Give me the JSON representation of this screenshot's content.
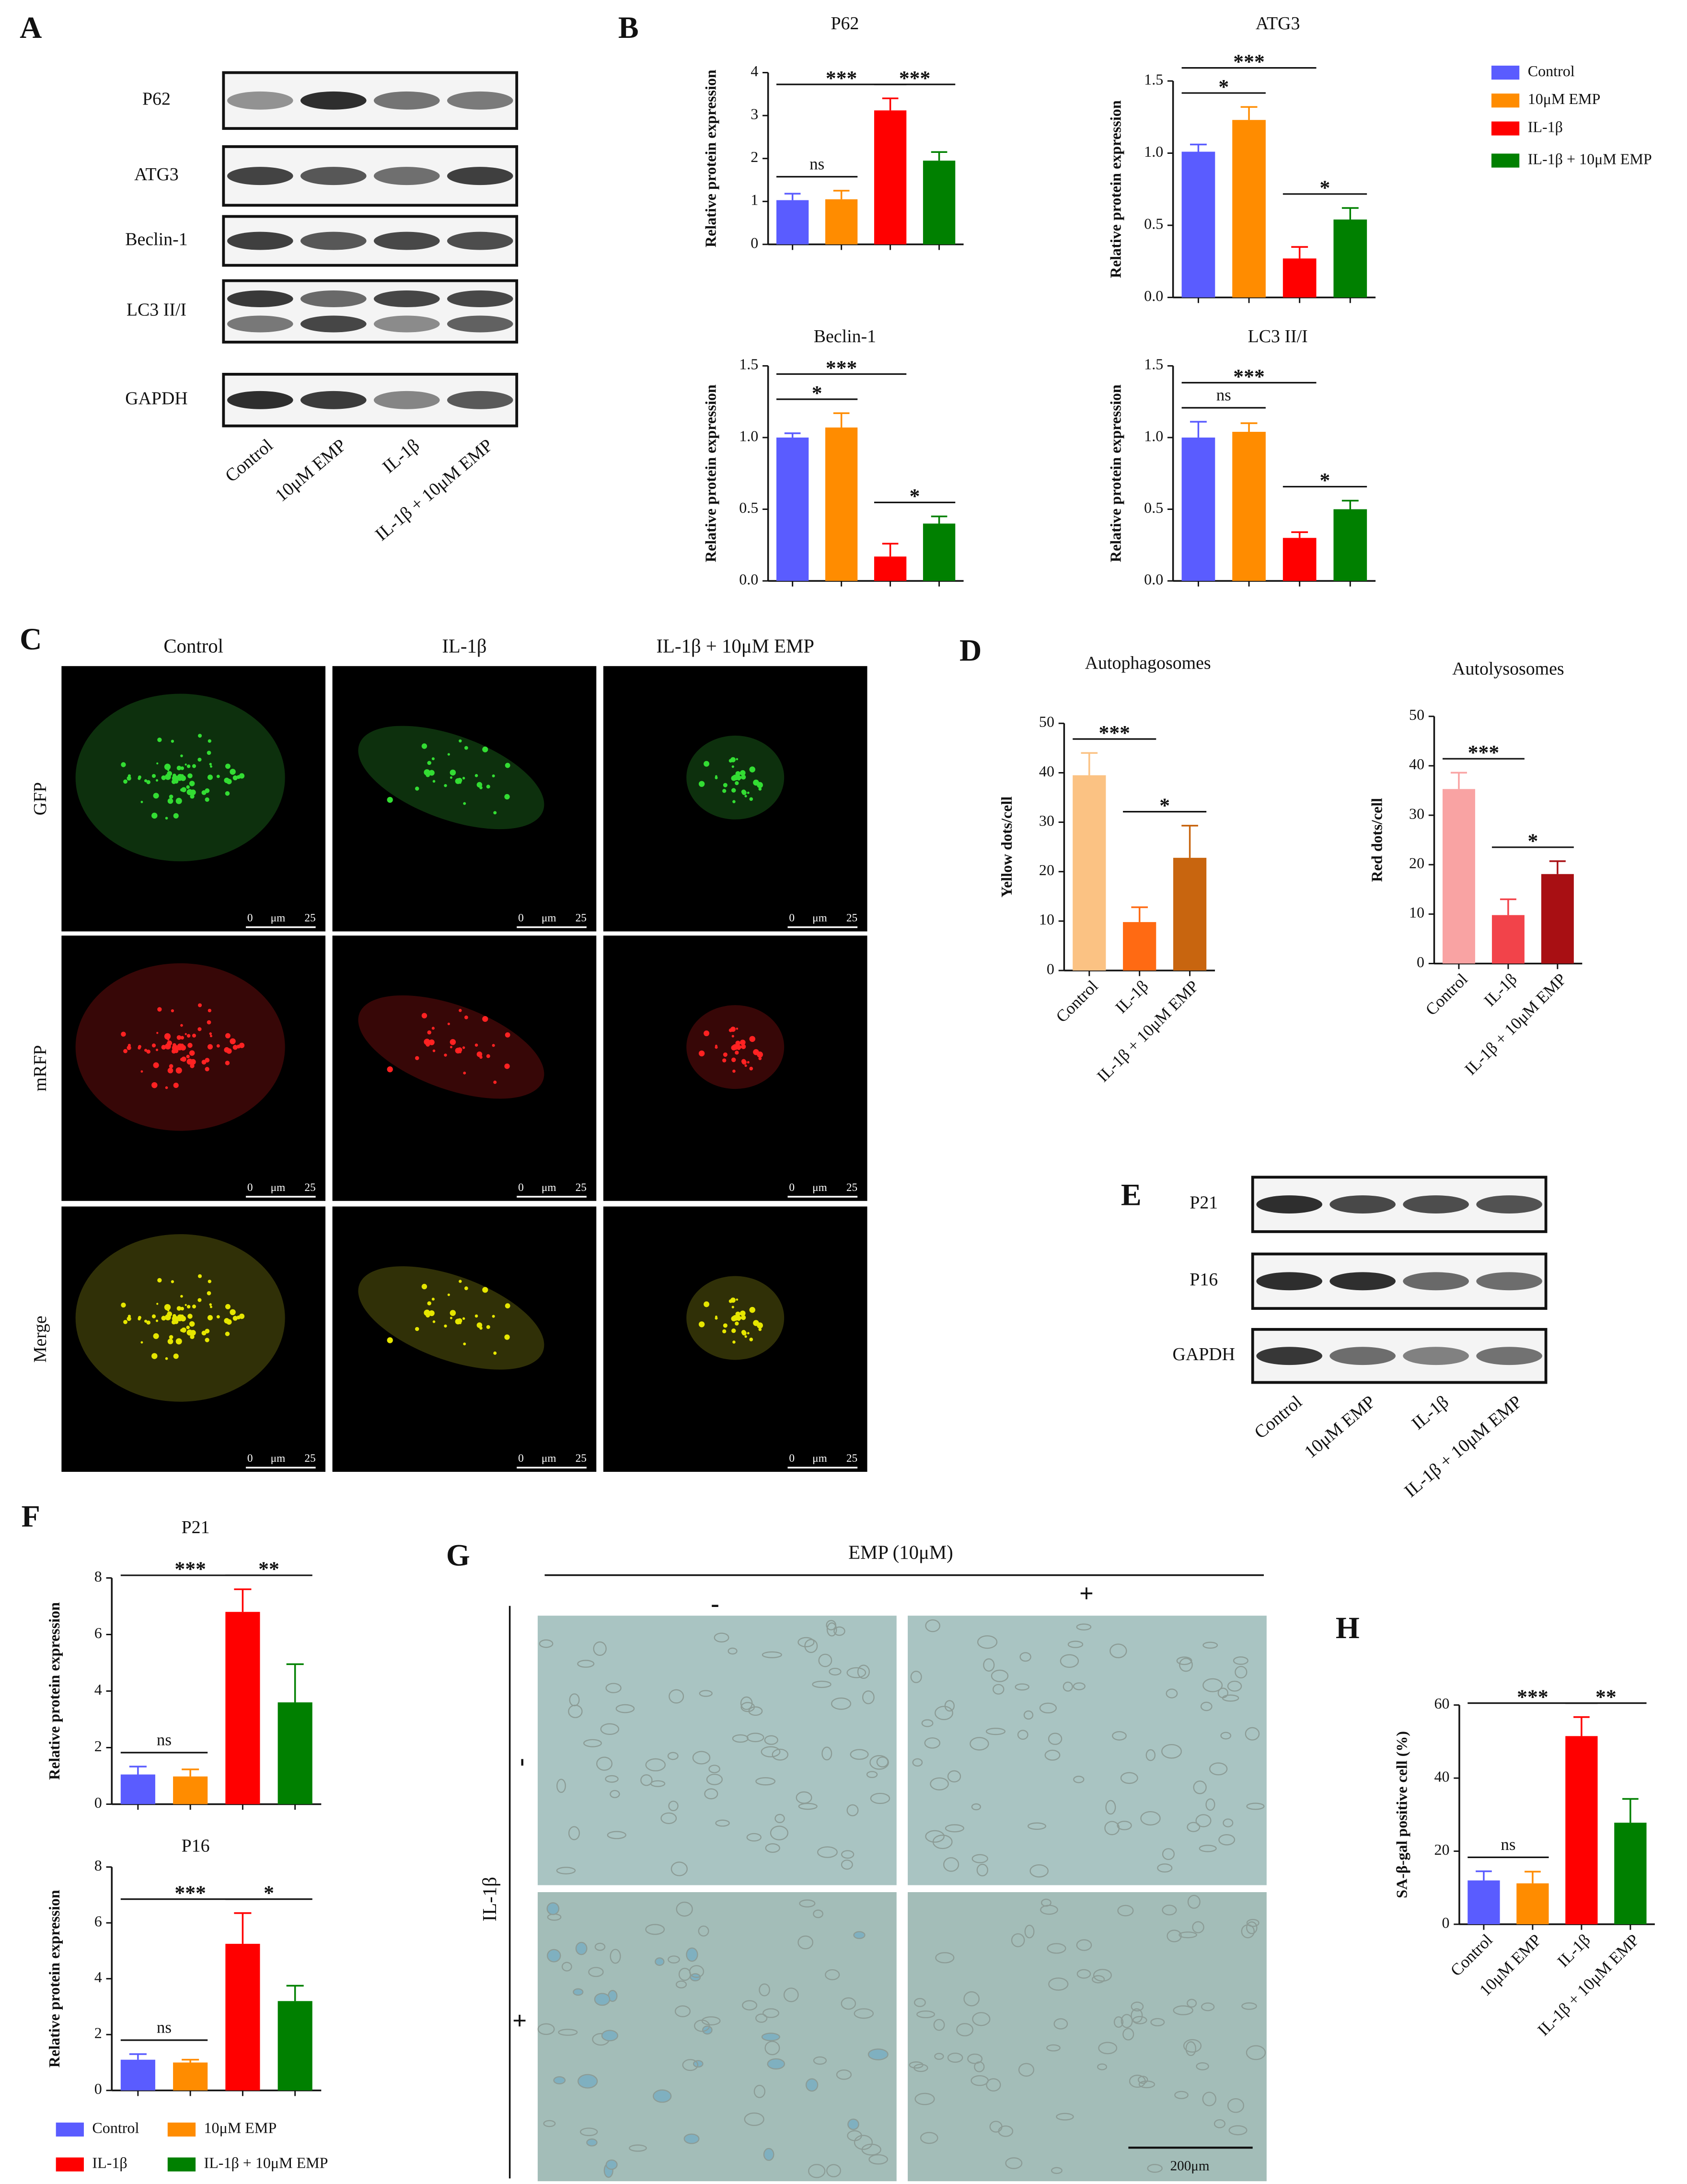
{
  "panel_labels": [
    "A",
    "B",
    "C",
    "D",
    "E",
    "F",
    "G",
    "H"
  ],
  "blots": [
    {
      "rows": [
        "P62",
        "ATG3",
        "Beclin-1",
        "LC3 II/I",
        "GAPDH"
      ],
      "lanes": [
        "Control",
        "10μM EMP",
        "IL-1β",
        "IL-1β + 10μM EMP"
      ]
    },
    {
      "rows": [
        "P21",
        "P16",
        "GAPDH"
      ],
      "lanes": [
        "Control",
        "10μM EMP",
        "IL-1β",
        "IL-1β + 10μM EMP"
      ]
    }
  ],
  "microscopy": {
    "columns": [
      "Control",
      "IL-1β",
      "IL-1β + 10μM EMP"
    ],
    "rows": [
      "GFP",
      "mRFP",
      "Merge"
    ],
    "scale": [
      "0",
      "μm",
      "25"
    ]
  },
  "staining": {
    "header": "EMP (10μM)",
    "columns": [
      "-",
      "+"
    ],
    "row_label": "IL-1β",
    "rows": [
      "-",
      "+"
    ],
    "scale": "200μm"
  },
  "legends": [
    [
      {
        "name": "Control",
        "color": "#5a5cff"
      },
      {
        "name": "10μM EMP",
        "color": "#ff8c00"
      },
      {
        "name": "IL-1β",
        "color": "#ff0000"
      },
      {
        "name": "IL-1β + 10μM EMP",
        "color": "#008000"
      }
    ],
    [
      {
        "name": "Control",
        "color": "#5a5cff"
      },
      {
        "name": "10μM EMP",
        "color": "#ff8c00"
      },
      {
        "name": "IL-1β",
        "color": "#ff0000"
      },
      {
        "name": "IL-1β + 10μM EMP",
        "color": "#008000"
      }
    ]
  ],
  "chart_data": [
    {
      "type": "bar",
      "title": "P62",
      "ylabel": "Relative protein expression",
      "values": [
        1.03,
        1.05,
        3.12,
        1.95
      ],
      "errors": [
        0.15,
        0.2,
        0.28,
        0.2
      ],
      "colors": [
        "#5a5cff",
        "#ff8c00",
        "#ff0000",
        "#008000"
      ],
      "ylim": [
        0,
        4
      ],
      "yticks": [
        0,
        1,
        2,
        3,
        4
      ],
      "annotations": [
        {
          "text": "ns",
          "from": 0,
          "to": 1
        },
        {
          "text": "***",
          "from": 0,
          "to": 2
        },
        {
          "text": "***",
          "from": 2,
          "to": 3
        }
      ]
    },
    {
      "type": "bar",
      "title": "ATG3",
      "ylabel": "Relative protein expression",
      "values": [
        1.01,
        1.23,
        0.27,
        0.54
      ],
      "errors": [
        0.05,
        0.09,
        0.08,
        0.08
      ],
      "colors": [
        "#5a5cff",
        "#ff8c00",
        "#ff0000",
        "#008000"
      ],
      "ylim": [
        0,
        1.5
      ],
      "yticks": [
        {
          "value": 0,
          "label": "0.0"
        },
        0.5,
        {
          "value": 1,
          "label": "1.0"
        },
        1.5
      ],
      "annotations": [
        {
          "text": "*",
          "from": 0,
          "to": 1
        },
        {
          "text": "***",
          "from": 0,
          "to": 2
        },
        {
          "text": "*",
          "from": 2,
          "to": 3
        }
      ]
    },
    {
      "type": "bar",
      "title": "Beclin-1",
      "ylabel": "Relative protein expression",
      "values": [
        1.0,
        1.07,
        0.17,
        0.4
      ],
      "errors": [
        0.03,
        0.1,
        0.09,
        0.05
      ],
      "colors": [
        "#5a5cff",
        "#ff8c00",
        "#ff0000",
        "#008000"
      ],
      "ylim": [
        0,
        1.5
      ],
      "yticks": [
        {
          "value": 0,
          "label": "0.0"
        },
        0.5,
        {
          "value": 1,
          "label": "1.0"
        },
        1.5
      ],
      "annotations": [
        {
          "text": "*",
          "from": 0,
          "to": 1
        },
        {
          "text": "***",
          "from": 0,
          "to": 2
        },
        {
          "text": "*",
          "from": 2,
          "to": 3
        }
      ]
    },
    {
      "type": "bar",
      "title": "LC3 II/I",
      "ylabel": "Relative protein expression",
      "values": [
        1.0,
        1.04,
        0.3,
        0.5
      ],
      "errors": [
        0.11,
        0.06,
        0.04,
        0.06
      ],
      "colors": [
        "#5a5cff",
        "#ff8c00",
        "#ff0000",
        "#008000"
      ],
      "ylim": [
        0,
        1.5
      ],
      "yticks": [
        {
          "value": 0,
          "label": "0.0"
        },
        0.5,
        {
          "value": 1,
          "label": "1.0"
        },
        1.5
      ],
      "annotations": [
        {
          "text": "ns",
          "from": 0,
          "to": 1
        },
        {
          "text": "***",
          "from": 0,
          "to": 2
        },
        {
          "text": "*",
          "from": 2,
          "to": 3
        }
      ]
    },
    {
      "type": "bar",
      "title": "Autophagosomes",
      "ylabel": "Yellow dots/cell",
      "categories": [
        "Control",
        "IL-1β",
        "IL-1β + 10μM EMP"
      ],
      "values": [
        39.5,
        9.8,
        22.8
      ],
      "errors": [
        4.5,
        3.0,
        6.5
      ],
      "colors": [
        "#fbc283",
        "#ff6a13",
        "#c8650f"
      ],
      "ylim": [
        0,
        50
      ],
      "yticks": [
        0,
        10,
        20,
        30,
        40,
        50
      ],
      "annotations": [
        {
          "text": "***",
          "from": 0,
          "to": 1
        },
        {
          "text": "*",
          "from": 1,
          "to": 2
        }
      ]
    },
    {
      "type": "bar",
      "title": "Autolysosomes",
      "ylabel": "Red dots/cell",
      "categories": [
        "Control",
        "IL-1β",
        "IL-1β + 10μM EMP"
      ],
      "values": [
        35.3,
        9.8,
        18.1
      ],
      "errors": [
        3.3,
        3.2,
        2.6
      ],
      "colors": [
        "#f9a3a3",
        "#f2434a",
        "#a80f13"
      ],
      "ylim": [
        0,
        50
      ],
      "yticks": [
        0,
        10,
        20,
        30,
        40,
        50
      ],
      "annotations": [
        {
          "text": "***",
          "from": 0,
          "to": 1
        },
        {
          "text": "*",
          "from": 1,
          "to": 2
        }
      ]
    },
    {
      "type": "bar",
      "title": "P21",
      "ylabel": "Relative protein expression",
      "values": [
        1.05,
        0.98,
        6.8,
        3.6
      ],
      "errors": [
        0.28,
        0.25,
        0.8,
        1.35
      ],
      "colors": [
        "#5a5cff",
        "#ff8c00",
        "#ff0000",
        "#008000"
      ],
      "ylim": [
        0,
        8
      ],
      "yticks": [
        0,
        2,
        4,
        6,
        8
      ],
      "annotations": [
        {
          "text": "ns",
          "from": 0,
          "to": 1
        },
        {
          "text": "***",
          "from": 0,
          "to": 2
        },
        {
          "text": "**",
          "from": 2,
          "to": 3
        }
      ]
    },
    {
      "type": "bar",
      "title": "P16",
      "ylabel": "Relative protein expression",
      "values": [
        1.1,
        1.0,
        5.25,
        3.2
      ],
      "errors": [
        0.2,
        0.1,
        1.1,
        0.55
      ],
      "colors": [
        "#5a5cff",
        "#ff8c00",
        "#ff0000",
        "#008000"
      ],
      "ylim": [
        0,
        8
      ],
      "yticks": [
        0,
        2,
        4,
        6,
        8
      ],
      "annotations": [
        {
          "text": "ns",
          "from": 0,
          "to": 1
        },
        {
          "text": "***",
          "from": 0,
          "to": 2
        },
        {
          "text": "*",
          "from": 2,
          "to": 3
        }
      ]
    },
    {
      "type": "bar",
      "ylabel": "SA-β-gal positive cell (%)",
      "categories": [
        "Control",
        "10μM EMP",
        "IL-1β",
        "IL-1β + 10μM EMP"
      ],
      "values": [
        12,
        11.2,
        51.5,
        27.8
      ],
      "errors": [
        2.5,
        3.2,
        5.2,
        6.5
      ],
      "colors": [
        "#5a5cff",
        "#ff8c00",
        "#ff0000",
        "#008000"
      ],
      "ylim": [
        0,
        60
      ],
      "yticks": [
        0,
        20,
        40,
        60
      ],
      "annotations": [
        {
          "text": "ns",
          "from": 0,
          "to": 1
        },
        {
          "text": "***",
          "from": 0,
          "to": 2
        },
        {
          "text": "**",
          "from": 2,
          "to": 3
        }
      ]
    }
  ]
}
